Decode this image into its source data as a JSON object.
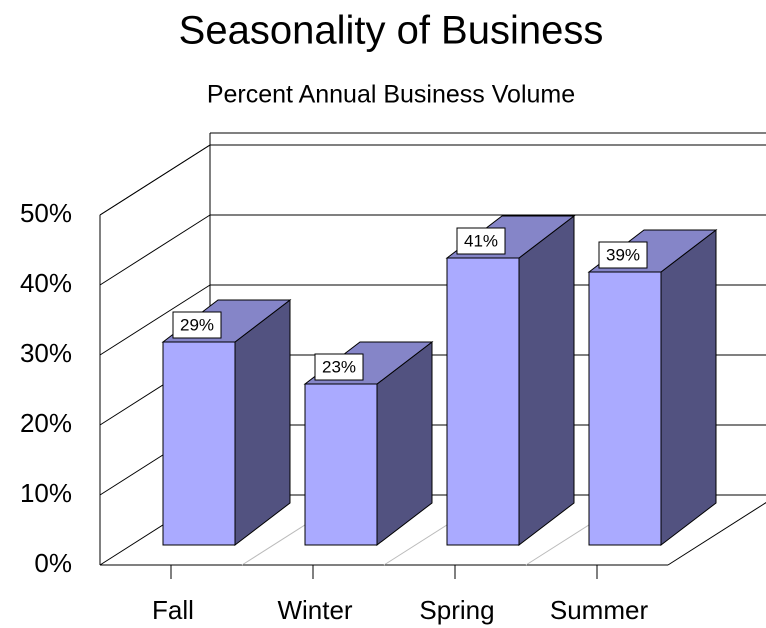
{
  "chart_data": {
    "type": "bar3d",
    "title": "Seasonality of Business",
    "subtitle": "Percent Annual Business Volume",
    "categories": [
      "Fall",
      "Winter",
      "Spring",
      "Summer"
    ],
    "values": [
      29,
      23,
      41,
      39
    ],
    "value_labels": [
      "29%",
      "23%",
      "41%",
      "39%"
    ],
    "color": "#aaaaff",
    "ylim": [
      0,
      50
    ],
    "yticks": [
      {
        "value": 0,
        "label": "0%"
      },
      {
        "value": 10,
        "label": "10%"
      },
      {
        "value": 20,
        "label": "20%"
      },
      {
        "value": 30,
        "label": "30%"
      },
      {
        "value": 40,
        "label": "40%"
      },
      {
        "value": 50,
        "label": "50%"
      }
    ],
    "grid": true
  }
}
